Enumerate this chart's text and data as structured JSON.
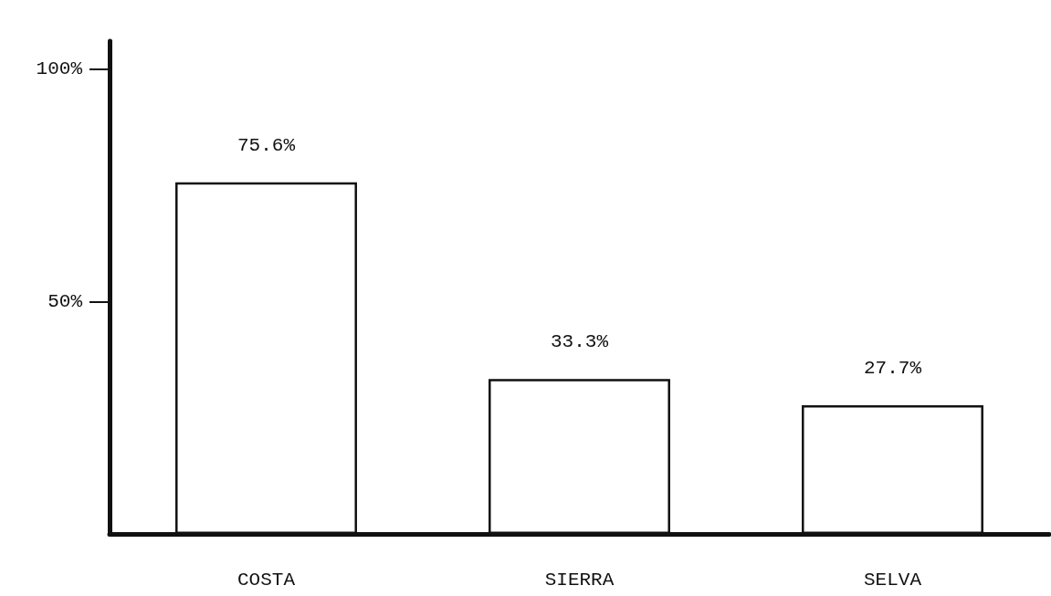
{
  "chart_data": {
    "type": "bar",
    "categories": [
      "COSTA",
      "SIERRA",
      "SELVA"
    ],
    "values": [
      75.6,
      33.3,
      27.7
    ],
    "value_labels": [
      "75.6%",
      "33.3%",
      "27.7%"
    ],
    "color": "#ffffff",
    "ylim": [
      0,
      106
    ],
    "yticks": [
      {
        "value": 50,
        "label": "50%"
      },
      {
        "value": 100,
        "label": "100%"
      }
    ],
    "grid": false
  }
}
